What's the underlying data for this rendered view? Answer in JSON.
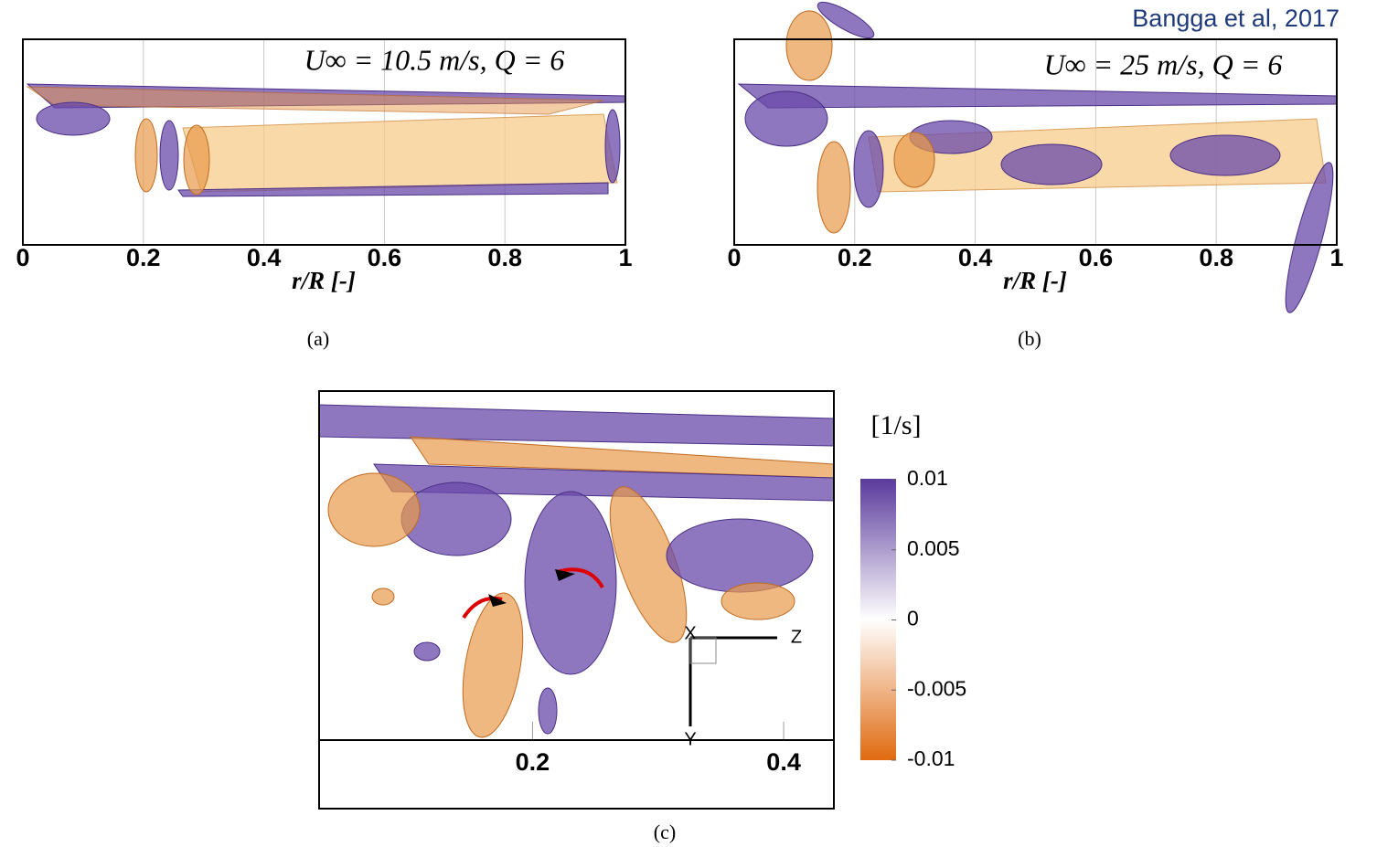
{
  "citation": "Bangga et al, 2017",
  "panels": [
    {
      "annotation": "U∞ = 10.5 m/s, Q = 6",
      "xticks": [
        0,
        0.2,
        0.4,
        0.6,
        0.8,
        1
      ],
      "xlabel": "r/R [-]",
      "caption": "(a)"
    },
    {
      "annotation": "U∞ = 25 m/s, Q = 6",
      "xticks": [
        0,
        0.2,
        0.4,
        0.6,
        0.8,
        1
      ],
      "xlabel": "r/R [-]",
      "caption": "(b)"
    },
    {
      "xlim": [
        0.03,
        0.44
      ],
      "xticks": [
        0.2,
        0.4
      ],
      "triad": [
        "X",
        "Z",
        "Y"
      ],
      "caption": "(c)"
    }
  ],
  "colorbar": {
    "label": "[1/s]",
    "ticks": [
      0.01,
      0.005,
      0,
      -0.005,
      -0.01
    ]
  }
}
